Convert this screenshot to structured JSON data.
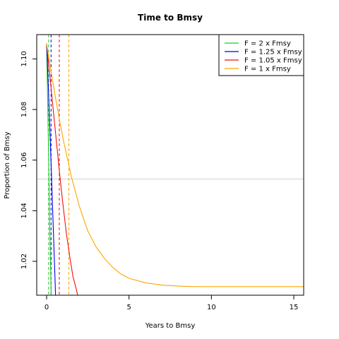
{
  "chart_data": {
    "type": "line",
    "title": "Time to Bmsy",
    "xlabel": "Years to Bmsy",
    "ylabel": "Proportion of Bmsy",
    "xlim": [
      -0.6,
      15.6
    ],
    "ylim": [
      1.0066,
      1.1096
    ],
    "xticks": [
      0,
      5,
      10,
      15
    ],
    "yticks": [
      1.02,
      1.04,
      1.06,
      1.08,
      1.1
    ],
    "xtick_labels": [
      "0",
      "5",
      "10",
      "15"
    ],
    "ytick_labels": [
      "1.02",
      "1.04",
      "1.06",
      "1.08",
      "1.10"
    ],
    "reference_hline": 1.0525,
    "legend_position": "top-right",
    "series": [
      {
        "name": "F = 2 x Fmsy",
        "color": "#22cc22",
        "x": [
          0.0,
          0.1,
          0.2,
          0.3
        ],
        "y": [
          1.106,
          1.07,
          1.03,
          1.0
        ],
        "vline": 0.12
      },
      {
        "name": "F = 1.25 x Fmsy",
        "color": "#0000ee",
        "x": [
          0.0,
          0.1,
          0.2,
          0.3,
          0.4,
          0.5,
          0.6
        ],
        "y": [
          1.106,
          1.09,
          1.072,
          1.053,
          1.034,
          1.015,
          0.995
        ],
        "vline": 0.27
      },
      {
        "name": "F = 1.05 x Fmsy",
        "color": "#ee1111",
        "x": [
          0.0,
          0.1,
          0.2,
          0.4,
          0.6,
          0.8,
          1.0,
          1.2,
          1.4,
          1.6,
          1.8,
          1.9
        ],
        "y": [
          1.106,
          1.099,
          1.093,
          1.08,
          1.067,
          1.054,
          1.042,
          1.031,
          1.022,
          1.014,
          1.009,
          1.006
        ],
        "vline": 0.77
      },
      {
        "name": "F = 1 x Fmsy",
        "color": "#ffa500",
        "x": [
          0.0,
          0.2,
          0.5,
          0.8,
          1.0,
          1.5,
          2.0,
          2.5,
          3.0,
          3.5,
          4.0,
          4.5,
          5.0,
          6.0,
          7.0,
          8.0,
          9.0,
          10.0,
          11.0,
          12.0,
          13.0,
          14.0,
          15.6
        ],
        "y": [
          1.106,
          1.0978,
          1.0861,
          1.0752,
          1.0684,
          1.0535,
          1.0415,
          1.032,
          1.0257,
          1.0212,
          1.0177,
          1.015,
          1.0133,
          1.0115,
          1.0106,
          1.0102,
          1.01,
          1.01,
          1.01,
          1.01,
          1.01,
          1.01,
          1.01
        ],
        "vline": 1.35
      }
    ]
  }
}
